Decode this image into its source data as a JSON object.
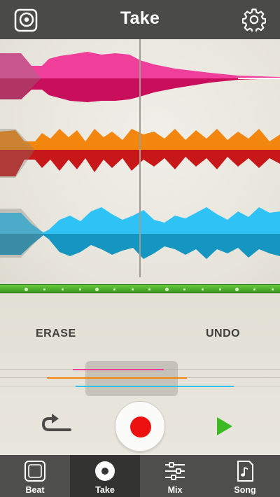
{
  "header": {
    "title": "Take",
    "left_icon": "disc-square-icon",
    "right_icon": "gear-icon"
  },
  "tracks": [
    {
      "name_icon": "waveform",
      "top_color": "#ef3f9b",
      "bottom_color": "#c90f5b"
    },
    {
      "name_icon": "waveform",
      "top_color": "#f3860f",
      "bottom_color": "#c71718"
    },
    {
      "name_icon": "waveform",
      "top_color": "#2ec3f4",
      "bottom_color": "#1596c0"
    }
  ],
  "controls": {
    "erase_label": "ERASE",
    "undo_label": "UNDO",
    "record_color": "#ec1111",
    "play_color": "#3cba21"
  },
  "tabs": [
    {
      "label": "Beat",
      "icon": "drum-pad-icon",
      "active": false
    },
    {
      "label": "Take",
      "icon": "record-disc-icon",
      "active": true
    },
    {
      "label": "Mix",
      "icon": "sliders-icon",
      "active": false
    },
    {
      "label": "Song",
      "icon": "song-sheet-icon",
      "active": false
    }
  ]
}
